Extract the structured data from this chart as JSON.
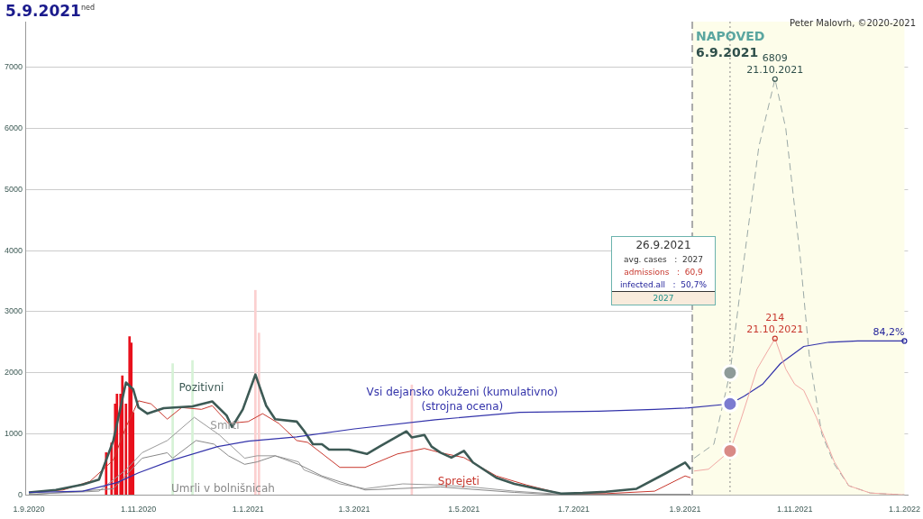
{
  "chart_data": {
    "type": "line",
    "title": "5.9.2021$^{ned}$",
    "annotations": [
      "Peter Malovrh, ©2020-2021",
      "26.9.2021",
      "avg. cases   :  2027",
      "admissions   :  60,9",
      "infected.all   :  50,7%",
      "2027",
      {
        "text": "6809\n21.10.2021",
        "x": "2021-10-21",
        "y": 6809
      },
      {
        "text": "214\n21.10.2021",
        "x": "2021-10-21",
        "y": 2560
      },
      {
        "text": "84,2%",
        "x": "2022-01-01",
        "y": 2520
      }
    ],
    "xlim": [
      "2020-08-30",
      "2022-01-03"
    ],
    "xticks": [
      {
        "value": "2020-09-01",
        "label": "1.9.2020"
      },
      {
        "value": "2020-11-01",
        "label": "1.11.2020"
      },
      {
        "value": "2021-01-01",
        "label": "1.1.2021"
      },
      {
        "value": "2021-03-01",
        "label": "1.3.2021"
      },
      {
        "value": "2021-05-01",
        "label": "1.5.2021"
      },
      {
        "value": "2021-07-01",
        "label": "1.7.2021"
      },
      {
        "value": "2021-09-01",
        "label": "1.9.2021"
      },
      {
        "value": "2021-11-01",
        "label": "1.11.2021"
      },
      {
        "value": "2022-01-01",
        "label": "1.1.2022"
      }
    ],
    "ylim": [
      0,
      7750
    ],
    "yticks": [
      0,
      1000,
      2000,
      3000,
      4000,
      5000,
      6000,
      7000
    ],
    "grid": "y",
    "legend": false,
    "marker": "none",
    "bands": [
      {
        "axis": "x",
        "from": "2021-09-05",
        "to": "2022-01-01",
        "label": "NAPOVED",
        "color": "#fdfdea"
      }
    ],
    "ref_lines": [
      {
        "axis": "x",
        "value": "2021-09-05",
        "label": "6.9.2021",
        "color": "#aaaaaa",
        "line_style": "dashed"
      },
      {
        "axis": "x",
        "value": "2021-09-26",
        "color": "#888888",
        "line_style": "dotted"
      }
    ],
    "series": [
      {
        "type": "bar",
        "x": [
          "2020-10-14",
          "2020-10-17",
          "2020-10-19",
          "2020-10-20",
          "2020-10-22",
          "2020-10-23",
          "2020-10-25",
          "2020-10-27",
          "2020-10-28",
          "2020-10-29",
          "2020-11-20",
          "2020-12-01",
          "2021-01-05",
          "2021-01-07",
          "2021-04-02"
        ],
        "values": [
          690,
          850,
          1490,
          1650,
          1650,
          1950,
          1490,
          2590,
          2490,
          1350,
          2150,
          2200,
          3350,
          2650,
          1800
        ],
        "colors": [
          "#e8101c",
          "#e8101c",
          "#e8101c",
          "#e8101c",
          "#e8101c",
          "#e8101c",
          "#e8101c",
          "#e8101c",
          "#e8101c",
          "#e8101c",
          "#d6f2d6",
          "#d6f2d6",
          "#fbd0d0",
          "#fbd0d0",
          "#fbd0d0"
        ]
      },
      {
        "name": "Smrti",
        "color": "#999999",
        "x": [
          "2020-09-01",
          "2020-10-10",
          "2020-10-25",
          "2020-11-03",
          "2020-11-17",
          "2020-12-02",
          "2020-12-16",
          "2020-12-30",
          "2021-01-06",
          "2021-01-16",
          "2021-01-29",
          "2021-02-01",
          "2021-02-21",
          "2021-03-07",
          "2021-03-28",
          "2021-04-18",
          "2021-05-05",
          "2021-05-29",
          "2021-06-24",
          "2021-09-04"
        ],
        "values": [
          10,
          60,
          410,
          690,
          890,
          1270,
          980,
          600,
          640,
          640,
          540,
          410,
          180,
          100,
          180,
          160,
          130,
          60,
          10,
          10
        ]
      },
      {
        "name": "Umrli v bolnišnicah",
        "color": "#888888",
        "x": [
          "2020-09-01",
          "2020-10-18",
          "2020-10-27",
          "2020-11-03",
          "2020-11-17",
          "2020-11-20",
          "2020-12-03",
          "2020-12-13",
          "2020-12-21",
          "2020-12-30",
          "2021-01-06",
          "2021-01-16",
          "2021-01-29",
          "2021-02-11",
          "2021-03-07",
          "2021-04-18",
          "2021-05-29",
          "2021-06-24",
          "2021-09-04"
        ],
        "values": [
          0,
          100,
          380,
          600,
          690,
          600,
          890,
          830,
          640,
          500,
          540,
          640,
          500,
          310,
          80,
          130,
          40,
          0,
          0
        ]
      },
      {
        "name": "Sprejeti",
        "color": "#c8382e",
        "x": [
          "2020-09-01",
          "2020-09-20",
          "2020-10-05",
          "2020-10-18",
          "2020-10-25",
          "2020-11-01",
          "2020-11-08",
          "2020-11-17",
          "2020-11-25",
          "2020-12-06",
          "2020-12-12",
          "2020-12-21",
          "2021-01-01",
          "2021-01-09",
          "2021-01-18",
          "2021-01-28",
          "2021-02-03",
          "2021-02-21",
          "2021-03-07",
          "2021-03-25",
          "2021-04-09",
          "2021-04-18",
          "2021-05-01",
          "2021-05-19",
          "2021-06-05",
          "2021-06-24",
          "2021-07-19",
          "2021-08-15",
          "2021-09-01",
          "2021-09-04"
        ],
        "values": [
          40,
          80,
          220,
          570,
          1110,
          1540,
          1490,
          1240,
          1430,
          1400,
          1460,
          1170,
          1200,
          1330,
          1170,
          890,
          860,
          450,
          450,
          670,
          760,
          690,
          610,
          310,
          160,
          20,
          20,
          60,
          310,
          280
        ]
      },
      {
        "name": "Pozitivni",
        "color": "#3d5a55",
        "x": [
          "2020-09-01",
          "2020-09-16",
          "2020-10-01",
          "2020-10-10",
          "2020-10-18",
          "2020-10-25",
          "2020-10-29",
          "2020-11-01",
          "2020-11-06",
          "2020-11-15",
          "2020-12-01",
          "2020-12-12",
          "2020-12-20",
          "2020-12-23",
          "2020-12-29",
          "2021-01-05",
          "2021-01-11",
          "2021-01-16",
          "2021-01-28",
          "2021-02-01",
          "2021-02-06",
          "2021-02-11",
          "2021-02-15",
          "2021-02-26",
          "2021-03-08",
          "2021-03-15",
          "2021-03-30",
          "2021-04-02",
          "2021-04-09",
          "2021-04-13",
          "2021-04-18",
          "2021-04-24",
          "2021-05-01",
          "2021-05-06",
          "2021-05-19",
          "2021-05-29",
          "2021-06-12",
          "2021-06-24",
          "2021-07-06",
          "2021-07-19",
          "2021-08-05",
          "2021-08-21",
          "2021-09-01",
          "2021-09-04"
        ],
        "values": [
          40,
          80,
          170,
          250,
          890,
          1840,
          1730,
          1430,
          1330,
          1420,
          1450,
          1530,
          1300,
          1110,
          1400,
          1970,
          1460,
          1240,
          1200,
          1050,
          830,
          830,
          740,
          740,
          670,
          790,
          1040,
          940,
          980,
          790,
          690,
          610,
          720,
          530,
          280,
          180,
          90,
          20,
          30,
          50,
          100,
          350,
          530,
          420
        ]
      },
      {
        "name": "Vsi dejansko okuženi (kumulativno)\n(strojna ocena)",
        "color": "#3333aa",
        "x": [
          "2020-09-01",
          "2020-10-01",
          "2020-10-20",
          "2020-11-01",
          "2020-11-20",
          "2020-12-15",
          "2021-01-01",
          "2021-01-28",
          "2021-03-01",
          "2021-04-15",
          "2021-06-01",
          "2021-07-15",
          "2021-08-15",
          "2021-09-01",
          "2021-09-26",
          "2021-10-04",
          "2021-10-14",
          "2021-10-24",
          "2021-11-06",
          "2021-11-20",
          "2021-12-06",
          "2022-01-01"
        ],
        "values": [
          40,
          60,
          200,
          360,
          570,
          790,
          880,
          950,
          1080,
          1230,
          1350,
          1370,
          1400,
          1420,
          1490,
          1620,
          1810,
          2150,
          2430,
          2500,
          2520,
          2520
        ]
      },
      {
        "color": "#9aa8a6",
        "line_style": "dashed",
        "x": [
          "2021-09-06",
          "2021-09-17",
          "2021-09-26",
          "2021-10-04",
          "2021-10-12",
          "2021-10-21",
          "2021-10-27",
          "2021-11-04",
          "2021-11-09",
          "2021-11-16",
          "2021-11-23",
          "2021-12-01",
          "2021-12-13",
          "2022-01-01"
        ],
        "values": [
          600,
          830,
          2000,
          3900,
          5700,
          6809,
          6000,
          3900,
          2300,
          1000,
          500,
          150,
          30,
          0
        ]
      },
      {
        "color": "#f0a8a4",
        "x": [
          "2021-09-06",
          "2021-09-14",
          "2021-09-26",
          "2021-10-02",
          "2021-10-11",
          "2021-10-21",
          "2021-10-27",
          "2021-11-01",
          "2021-11-06",
          "2021-11-13",
          "2021-11-23",
          "2021-12-01",
          "2021-12-13",
          "2022-01-01"
        ],
        "values": [
          390,
          420,
          720,
          1230,
          2060,
          2560,
          2060,
          1810,
          1710,
          1270,
          540,
          150,
          30,
          0
        ]
      },
      {
        "type": "scatter",
        "marker": "circle",
        "colors": [
          "#8e9b99",
          "#7b7bd0",
          "#d98a86"
        ],
        "x": [
          "2021-09-26",
          "2021-09-26",
          "2021-09-26"
        ],
        "values": [
          2000,
          1490,
          720
        ]
      }
    ]
  }
}
